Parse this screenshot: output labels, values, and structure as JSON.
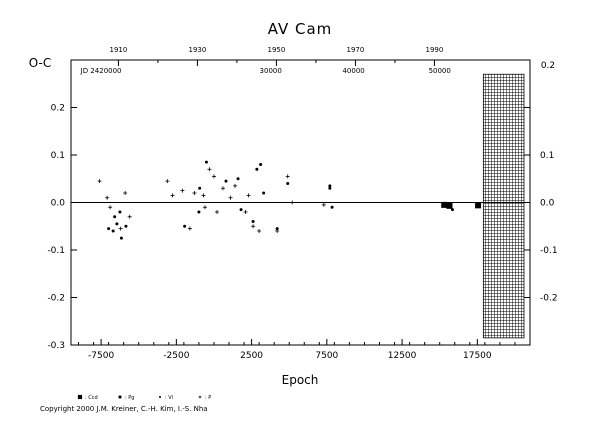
{
  "chart_data": {
    "type": "scatter",
    "title": "AV Cam",
    "xlabel": "Epoch",
    "ylabel": "O-C",
    "right_axis_label": "0.2",
    "xlim": [
      -9500,
      21000
    ],
    "ylim": [
      -0.3,
      0.3
    ],
    "x_ticks": [
      -7500,
      -2500,
      2500,
      7500,
      12500,
      17500
    ],
    "x_tick_labels": [
      "-7500",
      "-2500",
      "2500",
      "7500",
      "12500",
      "17500"
    ],
    "y_ticks": [
      -0.3,
      -0.2,
      -0.1,
      0.0,
      0.1,
      0.2
    ],
    "y_tick_labels": [
      "-0.3",
      "-0.2",
      "-0.1",
      "0.0",
      "0.1",
      "0.2"
    ],
    "right_y_ticks": [
      -0.2,
      -0.1,
      0.0,
      0.1,
      0.2
    ],
    "right_y_tick_labels": [
      "-0.2",
      "-0.1",
      "0.0",
      "0.1",
      "0.2"
    ],
    "top_year_ticks": [
      1910,
      1930,
      1950,
      1970,
      1990
    ],
    "top_year_labels": [
      "1910",
      "1930",
      "1950",
      "1970",
      "1990"
    ],
    "top_year_epochs": [
      -6350,
      -1100,
      4150,
      9400,
      14650
    ],
    "jd_ticks": [
      -7500,
      3770,
      9280,
      15000
    ],
    "jd_labels": [
      "JD 2420000",
      "30000",
      "40000",
      "50000"
    ],
    "zero_line": 0.0,
    "hatched_region": {
      "x_from": 17900,
      "x_to": 20600,
      "y_from": -0.285,
      "y_to": 0.27
    },
    "series": [
      {
        "name": ": Ccd",
        "marker": "square",
        "points": [
          [
            15300,
            -0.005
          ],
          [
            15650,
            -0.007
          ],
          [
            17550,
            -0.006
          ]
        ]
      },
      {
        "name": ": Pg",
        "marker": "square-small",
        "points": []
      },
      {
        "name": ": Vi",
        "marker": "dot",
        "points": [
          [
            -7000,
            -0.055
          ],
          [
            -6700,
            -0.06
          ],
          [
            -6600,
            -0.03
          ],
          [
            -6450,
            -0.045
          ],
          [
            -6250,
            -0.02
          ],
          [
            -6150,
            -0.075
          ],
          [
            -5850,
            -0.05
          ],
          [
            -1950,
            -0.05
          ],
          [
            -1000,
            -0.02
          ],
          [
            -950,
            0.03
          ],
          [
            -500,
            0.085
          ],
          [
            800,
            0.045
          ],
          [
            1600,
            0.05
          ],
          [
            1800,
            -0.015
          ],
          [
            2600,
            -0.04
          ],
          [
            2850,
            0.07
          ],
          [
            3100,
            0.08
          ],
          [
            3300,
            0.02
          ],
          [
            4200,
            -0.055
          ],
          [
            4900,
            0.04
          ],
          [
            7700,
            0.035
          ],
          [
            7700,
            0.03
          ],
          [
            7850,
            -0.01
          ],
          [
            15850,
            -0.015
          ]
        ]
      },
      {
        "name": ": P",
        "marker": "plus",
        "points": [
          [
            -7600,
            0.045
          ],
          [
            -7100,
            0.01
          ],
          [
            -6900,
            -0.01
          ],
          [
            -6200,
            -0.055
          ],
          [
            -5900,
            0.02
          ],
          [
            -5600,
            -0.03
          ],
          [
            -3100,
            0.045
          ],
          [
            -2750,
            0.015
          ],
          [
            -2100,
            0.025
          ],
          [
            -1600,
            -0.055
          ],
          [
            -1300,
            0.02
          ],
          [
            -700,
            0.015
          ],
          [
            -600,
            -0.01
          ],
          [
            -300,
            0.07
          ],
          [
            0,
            0.055
          ],
          [
            200,
            -0.02
          ],
          [
            600,
            0.03
          ],
          [
            1100,
            0.01
          ],
          [
            1400,
            0.035
          ],
          [
            2100,
            -0.02
          ],
          [
            2300,
            0.015
          ],
          [
            2600,
            -0.05
          ],
          [
            3000,
            -0.06
          ],
          [
            4200,
            -0.06
          ],
          [
            4900,
            0.055
          ],
          [
            5200,
            0.0
          ],
          [
            7300,
            -0.005
          ]
        ]
      }
    ]
  },
  "legend": [
    {
      "marker": "square",
      "label": ": Ccd"
    },
    {
      "marker": "square-small",
      "label": ": Pg"
    },
    {
      "marker": "dot",
      "label": ": Vi"
    },
    {
      "marker": "plus",
      "label": ": P"
    }
  ],
  "copyright": "Copyright 2000 J.M. Kreiner, C.-H. Kim, I.-S. Nha"
}
